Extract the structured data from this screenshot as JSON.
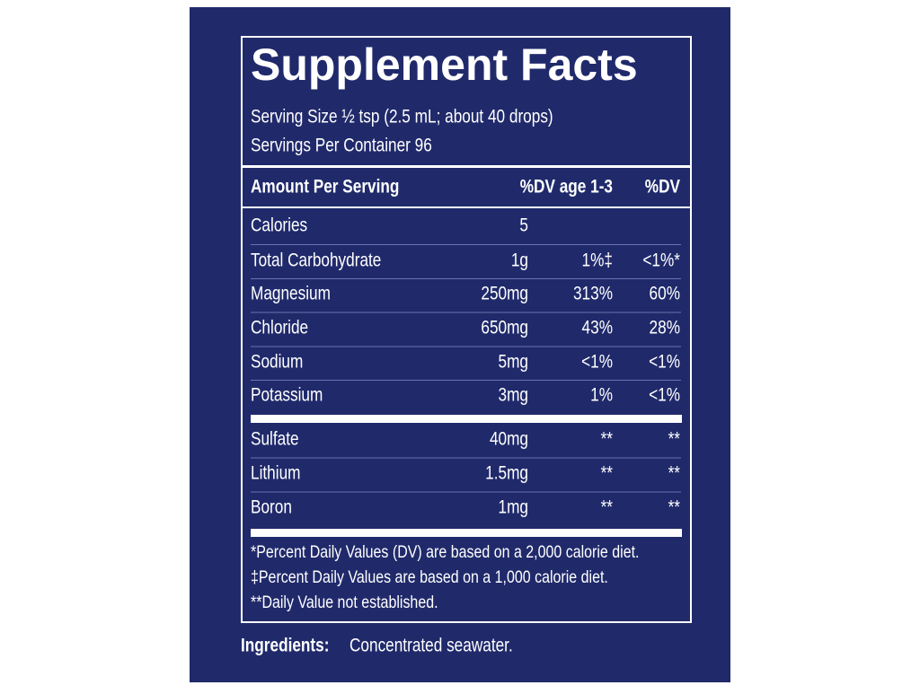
{
  "title": "Supplement Facts",
  "serving_size": "Serving Size ½ tsp (2.5 mL; about 40 drops)",
  "servings_per_container": "Servings Per Container 96",
  "header": [
    "Amount Per Serving",
    "%DV age 1-3",
    "%DV"
  ],
  "rows": [
    [
      "Calories",
      "5"
    ],
    [
      "Total Carbohydrate",
      "1g",
      "1%‡",
      "<1%*"
    ],
    [
      "Magnesium",
      "250mg",
      "313%",
      "60%"
    ],
    [
      "Chloride",
      "650mg",
      "43%",
      "28%"
    ],
    [
      "Sodium",
      "5mg",
      "<1%",
      "<1%"
    ],
    [
      "Potassium",
      "3mg",
      "1%",
      "<1%"
    ]
  ],
  "other_rows": [
    [
      "Sulfate",
      "40mg",
      "**",
      "**"
    ],
    [
      "Lithium",
      "1.5mg",
      "**",
      "**"
    ],
    [
      "Boron",
      "1mg",
      "**",
      "**"
    ]
  ],
  "footnotes": [
    "*Percent Daily Values (DV) are based on a 2,000 calorie diet.",
    "‡Percent Daily Values are based on a 1,000 calorie diet.",
    "**Daily Value not established."
  ],
  "ingredients": {
    "label": "Ingredients:",
    "text": "Concentrated seawater."
  }
}
